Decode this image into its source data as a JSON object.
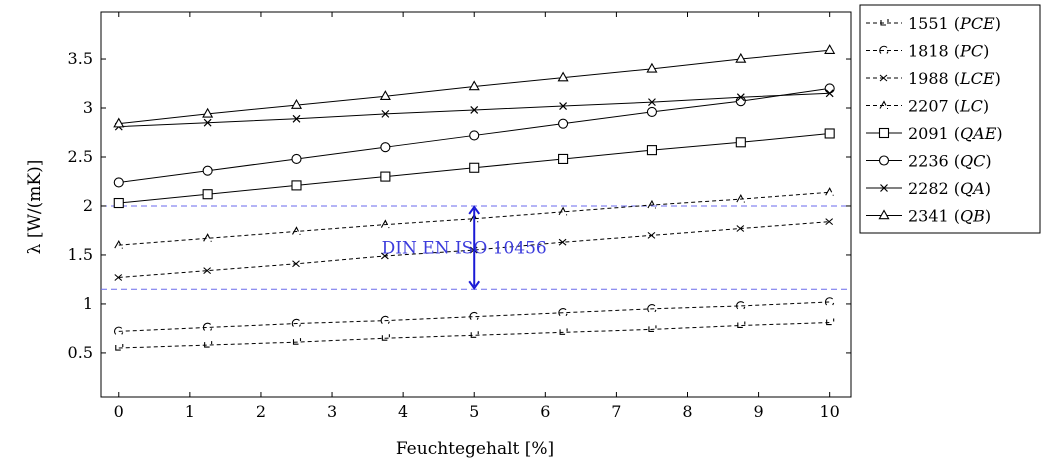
{
  "chart_data": {
    "type": "line",
    "xlabel": "Feuchtegehalt [%]",
    "ylabel": "λ [W/(mK)]",
    "xlim": [
      -0.25,
      10.3
    ],
    "ylim": [
      0.05,
      3.98
    ],
    "xticks": [
      "0",
      "1",
      "2",
      "3",
      "4",
      "5",
      "6",
      "7",
      "8",
      "9",
      "10"
    ],
    "yticks": [
      "0.5",
      "1",
      "1.5",
      "2",
      "2.5",
      "3",
      "3.5"
    ],
    "grid": false,
    "legend_position": "outside-right",
    "x": [
      0,
      1.25,
      2.5,
      3.75,
      5,
      6.25,
      7.5,
      8.75,
      10
    ],
    "series": [
      {
        "name": "1551",
        "tag": "PCE",
        "style": "dashed",
        "marker": "rotated-square",
        "values": [
          0.55,
          0.58,
          0.61,
          0.65,
          0.68,
          0.71,
          0.74,
          0.78,
          0.81
        ]
      },
      {
        "name": "1818",
        "tag": "PC",
        "style": "dashed",
        "marker": "rotated-circle",
        "values": [
          0.72,
          0.76,
          0.8,
          0.83,
          0.87,
          0.91,
          0.95,
          0.98,
          1.02
        ]
      },
      {
        "name": "1988",
        "tag": "LCE",
        "style": "dashed",
        "marker": "rotated-x",
        "values": [
          1.27,
          1.34,
          1.41,
          1.49,
          1.55,
          1.63,
          1.7,
          1.77,
          1.84
        ]
      },
      {
        "name": "2207",
        "tag": "LC",
        "style": "dashed",
        "marker": "rotated-triangle",
        "values": [
          1.6,
          1.67,
          1.74,
          1.81,
          1.87,
          1.94,
          2.01,
          2.07,
          2.14
        ]
      },
      {
        "name": "2091",
        "tag": "QAE",
        "style": "solid",
        "marker": "square",
        "values": [
          2.03,
          2.12,
          2.21,
          2.3,
          2.39,
          2.48,
          2.57,
          2.65,
          2.74
        ]
      },
      {
        "name": "2236",
        "tag": "QC",
        "style": "solid",
        "marker": "circle",
        "values": [
          2.24,
          2.36,
          2.48,
          2.6,
          2.72,
          2.84,
          2.96,
          3.07,
          3.2
        ]
      },
      {
        "name": "2282",
        "tag": "QA",
        "style": "solid",
        "marker": "x",
        "values": [
          2.81,
          2.85,
          2.89,
          2.94,
          2.98,
          3.02,
          3.06,
          3.11,
          3.15
        ]
      },
      {
        "name": "2341",
        "tag": "QB",
        "style": "solid",
        "marker": "triangle",
        "values": [
          2.84,
          2.94,
          3.03,
          3.12,
          3.22,
          3.31,
          3.4,
          3.5,
          3.59
        ]
      }
    ],
    "reference_lines": [
      2.0,
      1.15
    ],
    "annotation": {
      "text": "DIN EN ISO 10456",
      "x": 5,
      "y_from": 1.15,
      "y_to": 2.0,
      "color": "#3b3bdc"
    }
  }
}
